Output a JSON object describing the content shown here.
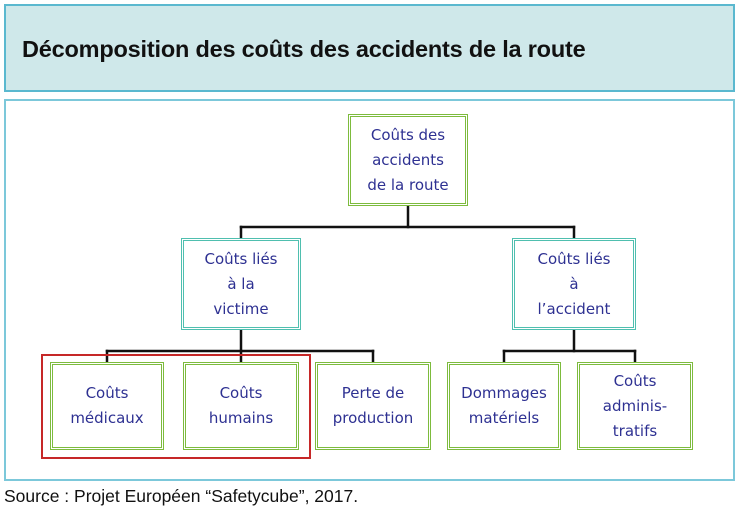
{
  "title": "Décomposition des coûts des accidents de la route",
  "diagram": {
    "root": {
      "label": "Coûts des\naccidents\nde la route"
    },
    "branches": [
      {
        "label": "Coûts liés\nà la\nvictime",
        "children": [
          {
            "label": "Coûts\nmédicaux"
          },
          {
            "label": "Coûts\nhumains"
          },
          {
            "label": "Perte de\nproduction"
          }
        ]
      },
      {
        "label": "Coûts liés\nà\nl’accident",
        "children": [
          {
            "label": "Dommages\nmatériels"
          },
          {
            "label": "Coûts\nadminis-\ntratifs"
          }
        ]
      }
    ],
    "colors": {
      "green_border": "#7dbb3d",
      "teal_border": "#4fbfaf",
      "highlight_border": "#c62828",
      "node_text": "#2e3192",
      "connector": "#111111",
      "banner_fill": "#cfe8ea"
    }
  },
  "source": "Source : Projet Européen “Safetycube”, 2017."
}
